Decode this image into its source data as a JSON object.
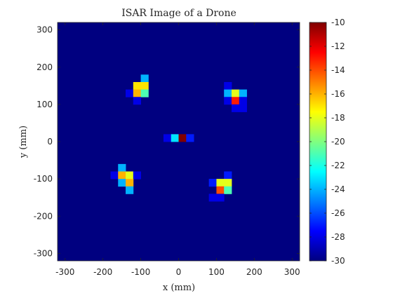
{
  "chart_data": {
    "type": "heatmap",
    "title": "ISAR Image of a Drone",
    "xlabel": "x (mm)",
    "ylabel": "y (mm)",
    "xlim": [
      -320,
      320
    ],
    "ylim": [
      -320,
      320
    ],
    "xticks": [
      -300,
      -200,
      -100,
      0,
      100,
      200,
      300
    ],
    "yticks": [
      -300,
      -200,
      -100,
      0,
      100,
      200,
      300
    ],
    "cell_size_mm": 20,
    "background_value": -30,
    "colorbar": {
      "colormap": "jet",
      "range": [
        -30,
        -10
      ],
      "ticks": [
        -30,
        -28,
        -26,
        -24,
        -22,
        -20,
        -18,
        -16,
        -14,
        -12,
        -10
      ]
    },
    "cells": [
      {
        "x": -90,
        "y": 170,
        "v": -24
      },
      {
        "x": -110,
        "y": 150,
        "v": -17
      },
      {
        "x": -90,
        "y": 150,
        "v": -17
      },
      {
        "x": -130,
        "y": 130,
        "v": -28
      },
      {
        "x": -110,
        "y": 130,
        "v": -16
      },
      {
        "x": -90,
        "y": 130,
        "v": -21
      },
      {
        "x": -110,
        "y": 110,
        "v": -28
      },
      {
        "x": 130,
        "y": 150,
        "v": -28
      },
      {
        "x": 130,
        "y": 130,
        "v": -24
      },
      {
        "x": 150,
        "y": 130,
        "v": -18
      },
      {
        "x": 170,
        "y": 130,
        "v": -24
      },
      {
        "x": 130,
        "y": 110,
        "v": -28
      },
      {
        "x": 150,
        "y": 110,
        "v": -13
      },
      {
        "x": 170,
        "y": 110,
        "v": -28
      },
      {
        "x": 150,
        "y": 90,
        "v": -28
      },
      {
        "x": 170,
        "y": 90,
        "v": -28
      },
      {
        "x": -30,
        "y": 10,
        "v": -28
      },
      {
        "x": -10,
        "y": 10,
        "v": -23
      },
      {
        "x": 10,
        "y": 10,
        "v": -10
      },
      {
        "x": 30,
        "y": 10,
        "v": -27
      },
      {
        "x": -150,
        "y": -70,
        "v": -24
      },
      {
        "x": -170,
        "y": -90,
        "v": -28
      },
      {
        "x": -150,
        "y": -90,
        "v": -16
      },
      {
        "x": -130,
        "y": -90,
        "v": -18
      },
      {
        "x": -110,
        "y": -90,
        "v": -28
      },
      {
        "x": -150,
        "y": -110,
        "v": -24
      },
      {
        "x": -130,
        "y": -110,
        "v": -16
      },
      {
        "x": -130,
        "y": -130,
        "v": -24
      },
      {
        "x": 130,
        "y": -90,
        "v": -27
      },
      {
        "x": 90,
        "y": -110,
        "v": -27
      },
      {
        "x": 110,
        "y": -110,
        "v": -18
      },
      {
        "x": 130,
        "y": -110,
        "v": -18
      },
      {
        "x": 110,
        "y": -130,
        "v": -14
      },
      {
        "x": 130,
        "y": -130,
        "v": -21
      },
      {
        "x": 90,
        "y": -150,
        "v": -28
      },
      {
        "x": 110,
        "y": -150,
        "v": -28
      }
    ]
  }
}
